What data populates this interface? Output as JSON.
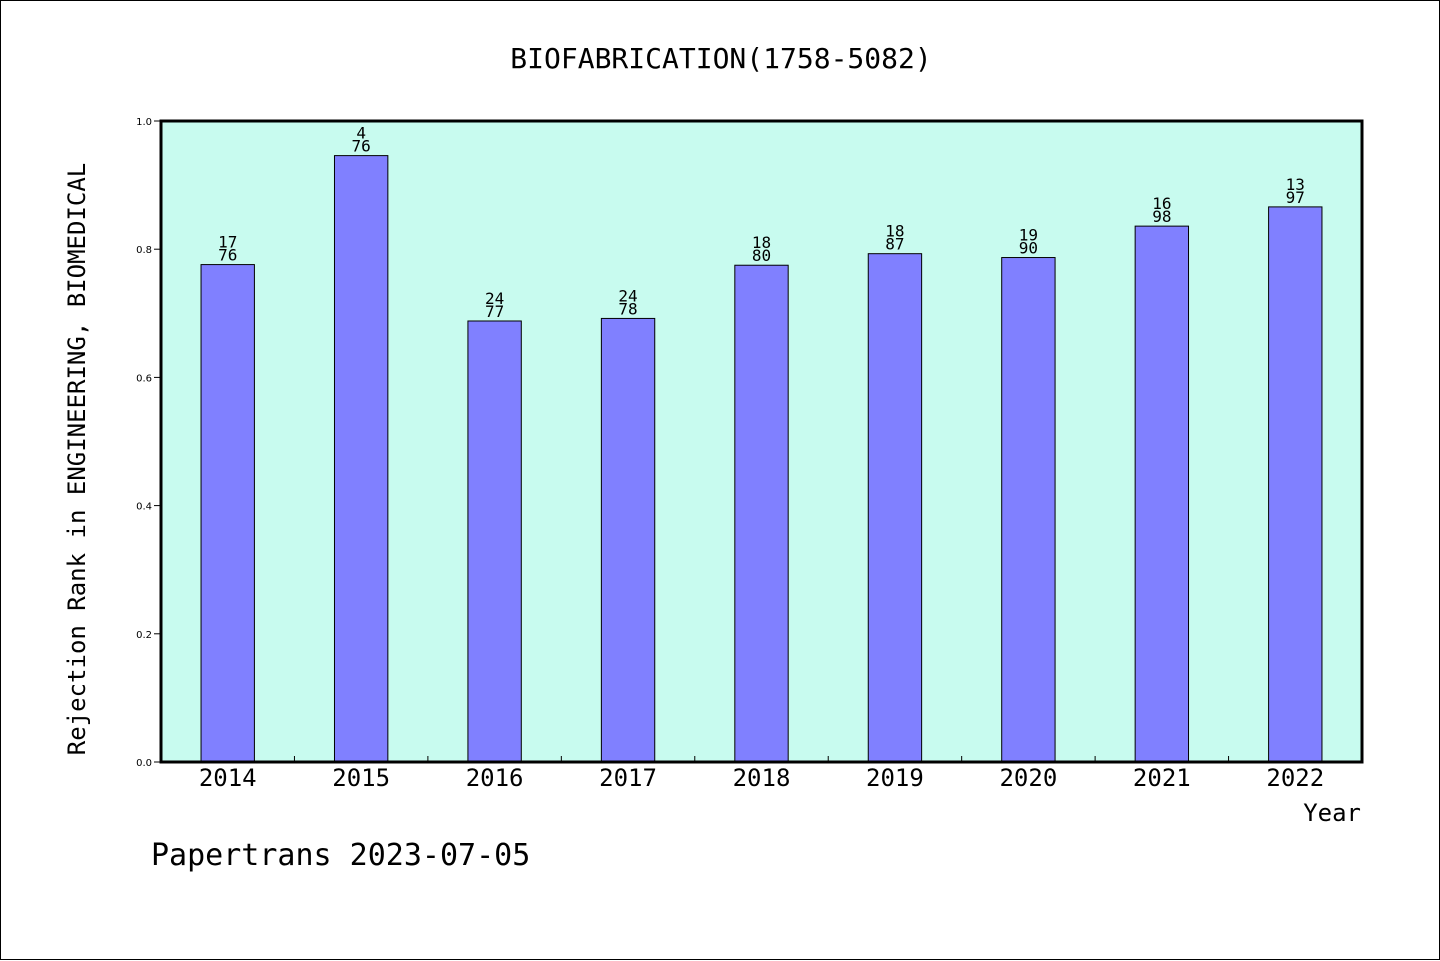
{
  "chart_data": {
    "type": "bar",
    "title": "BIOFABRICATION(1758-5082)",
    "xlabel": "Year",
    "ylabel": "Rejection Rank in ENGINEERING, BIOMEDICAL",
    "categories": [
      "2014",
      "2015",
      "2016",
      "2017",
      "2018",
      "2019",
      "2020",
      "2021",
      "2022"
    ],
    "values": [
      0.776,
      0.946,
      0.688,
      0.692,
      0.775,
      0.793,
      0.787,
      0.836,
      0.866
    ],
    "data_labels": [
      [
        "17",
        "76"
      ],
      [
        "4",
        "76"
      ],
      [
        "24",
        "77"
      ],
      [
        "24",
        "78"
      ],
      [
        "18",
        "80"
      ],
      [
        "18",
        "87"
      ],
      [
        "19",
        "90"
      ],
      [
        "16",
        "98"
      ],
      [
        "13",
        "97"
      ]
    ],
    "ylim": [
      0,
      1.0
    ],
    "yticks": [
      "0.0",
      "0.2",
      "0.4",
      "0.6",
      "0.8",
      "1.0"
    ],
    "grid": false,
    "colors": {
      "plot_background": "#c8fbef",
      "bar_fill": "#8080ff",
      "bar_stroke": "#000000"
    }
  },
  "footer": {
    "text": "Papertrans 2023-07-05"
  }
}
